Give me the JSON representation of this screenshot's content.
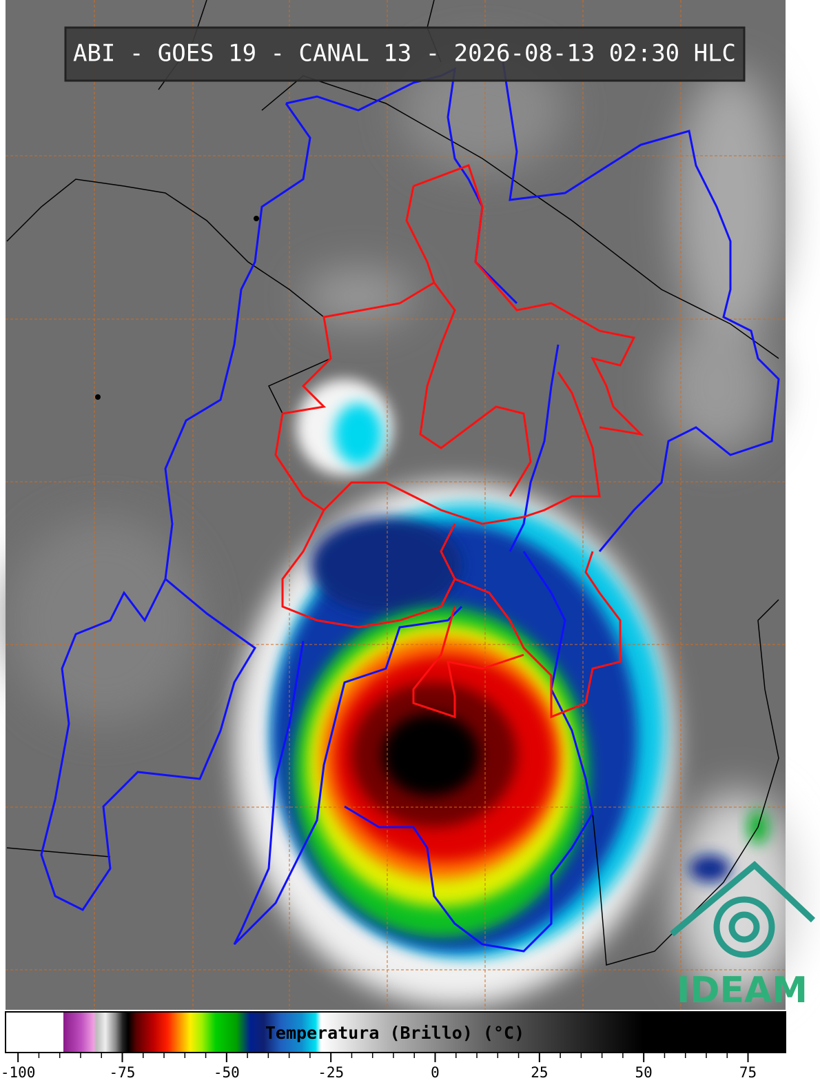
{
  "header": {
    "title": "ABI - GOES 19 - CANAL 13 - 2026-08-13 02:30 HLC"
  },
  "colorbar": {
    "label": "Temperatura (Brillo) (°C)",
    "lim": [
      -103,
      84
    ],
    "ticks": [
      -100,
      -75,
      -50,
      -25,
      0,
      25,
      50,
      75
    ]
  },
  "logo": {
    "text": "IDEAM"
  }
}
